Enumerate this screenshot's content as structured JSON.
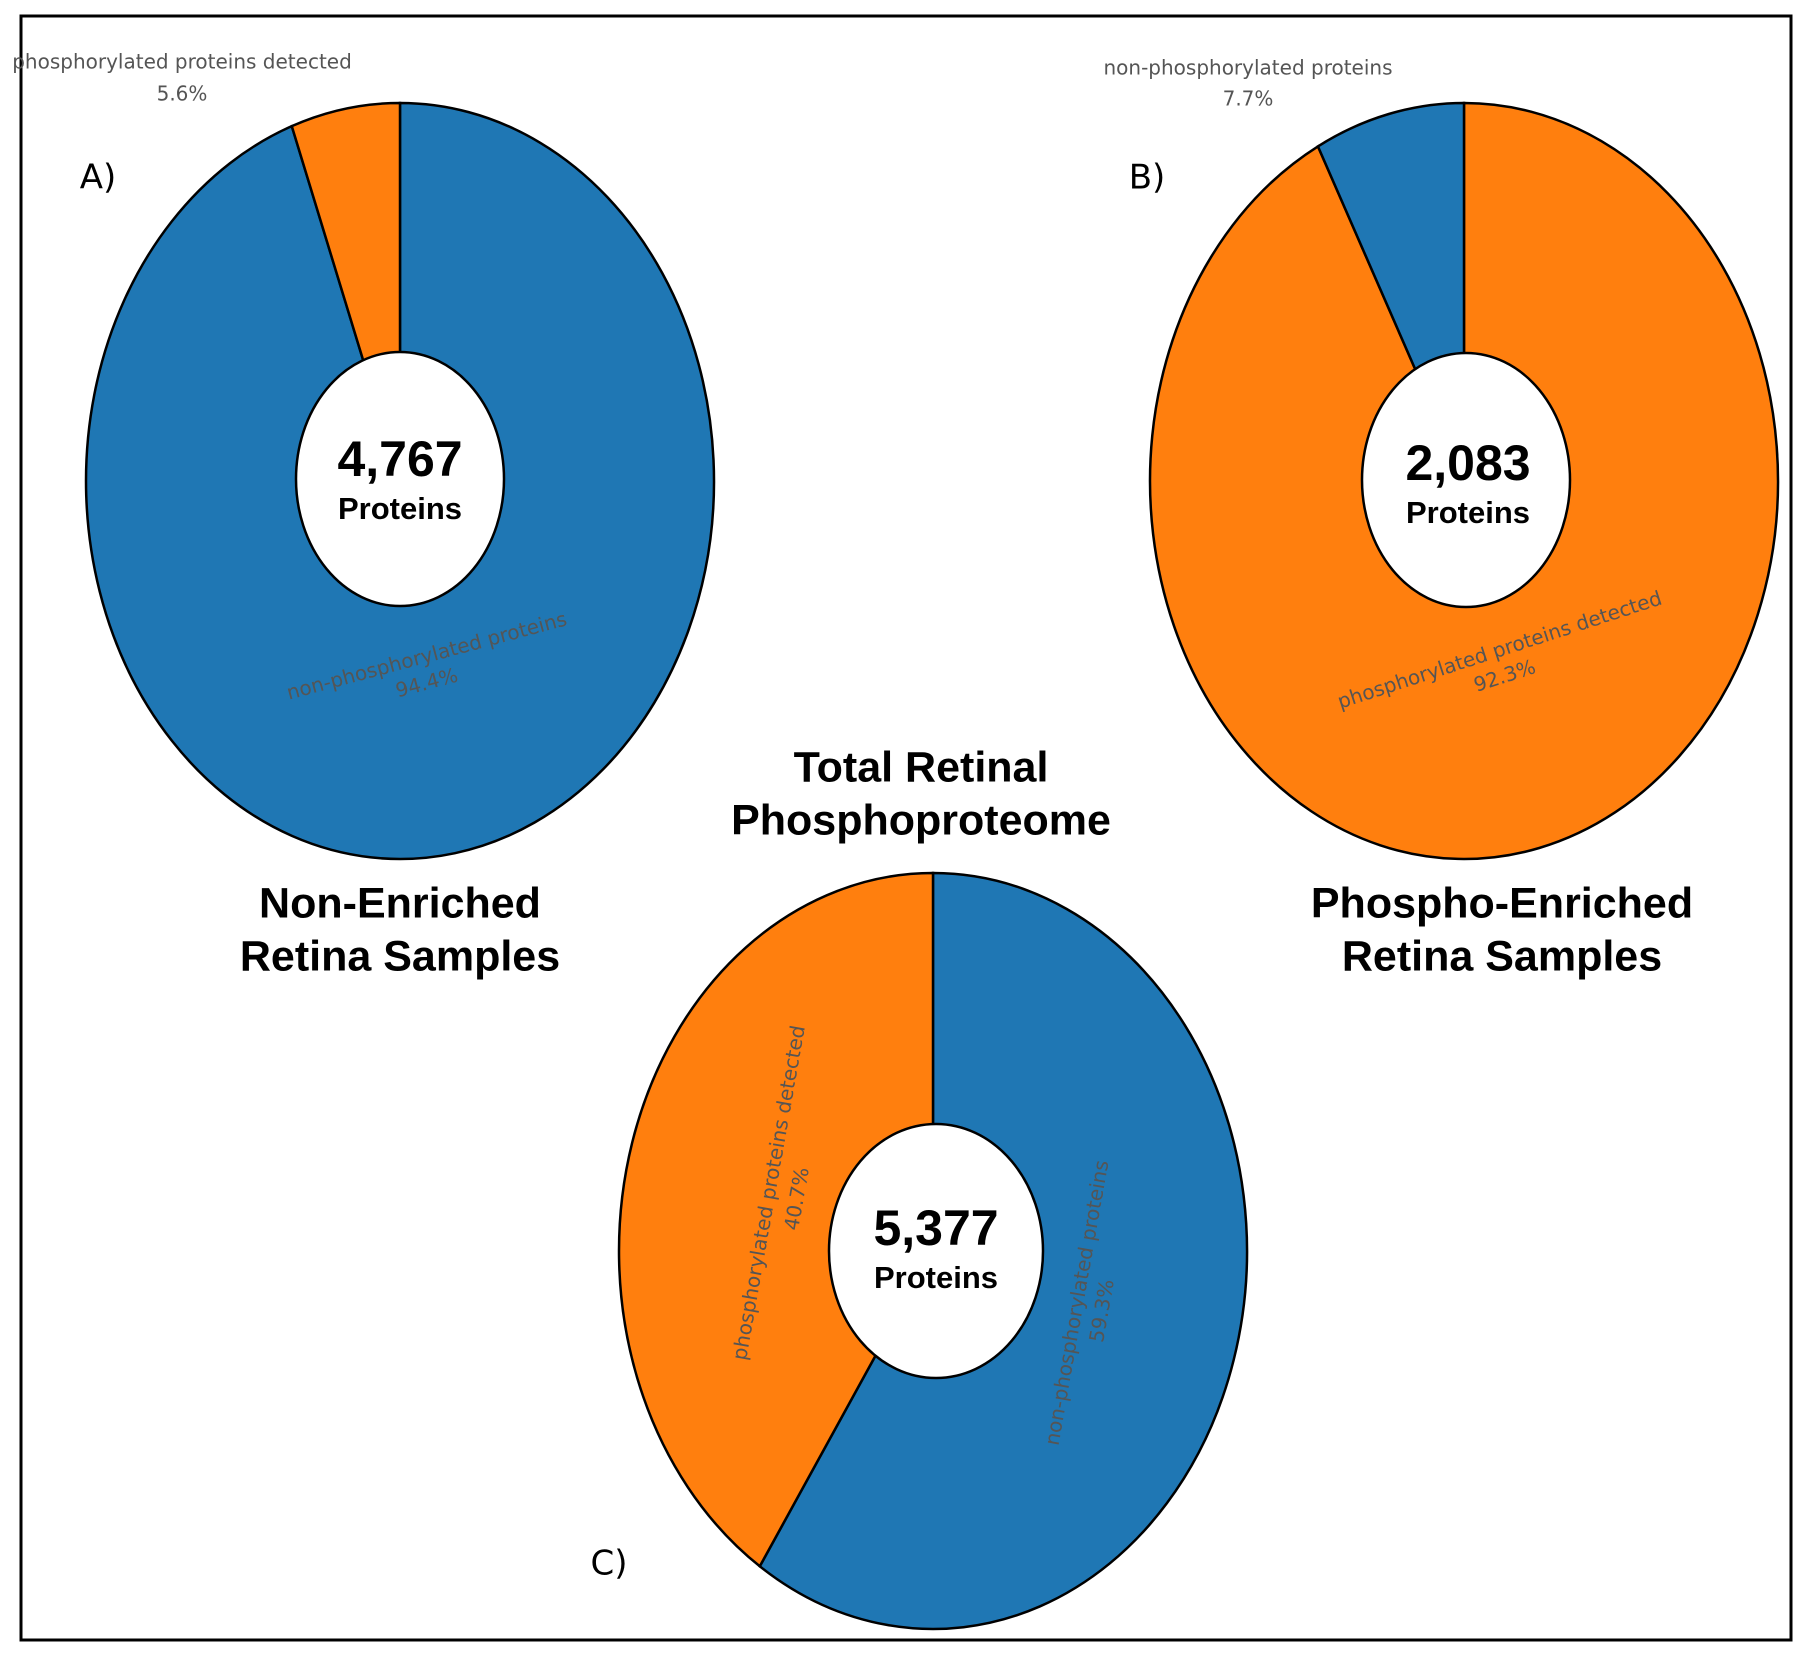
{
  "chart_data": [
    {
      "type": "pie",
      "panel": "A)",
      "title_lines": [
        "Non-Enriched",
        "Retina Samples"
      ],
      "center_label": "4,767",
      "center_sublabel": "Proteins",
      "categories": [
        "non-phosphorylated proteins",
        "phosphorylated proteins detected"
      ],
      "values": [
        94.4,
        5.6
      ],
      "value_labels": [
        "94.4%",
        "5.6%"
      ],
      "colors": [
        "#1f77b4",
        "#ff7f0e"
      ]
    },
    {
      "type": "pie",
      "panel": "B)",
      "title_lines": [
        "Phospho-Enriched",
        "Retina Samples"
      ],
      "center_label": "2,083",
      "center_sublabel": "Proteins",
      "categories": [
        "phosphorylated proteins detected",
        "non-phosphorylated proteins"
      ],
      "values": [
        92.3,
        7.7
      ],
      "value_labels": [
        "92.3%",
        "7.7%"
      ],
      "colors": [
        "#ff7f0e",
        "#1f77b4"
      ]
    },
    {
      "type": "pie",
      "panel": "C)",
      "title_lines": [
        "Total Retinal",
        "Phosphoproteome"
      ],
      "center_label": "5,377",
      "center_sublabel": "Proteins",
      "categories": [
        "non-phosphorylated proteins",
        "phosphorylated proteins detected"
      ],
      "values": [
        59.3,
        40.7
      ],
      "value_labels": [
        "59.3%",
        "40.7%"
      ],
      "colors": [
        "#1f77b4",
        "#ff7f0e"
      ]
    }
  ]
}
